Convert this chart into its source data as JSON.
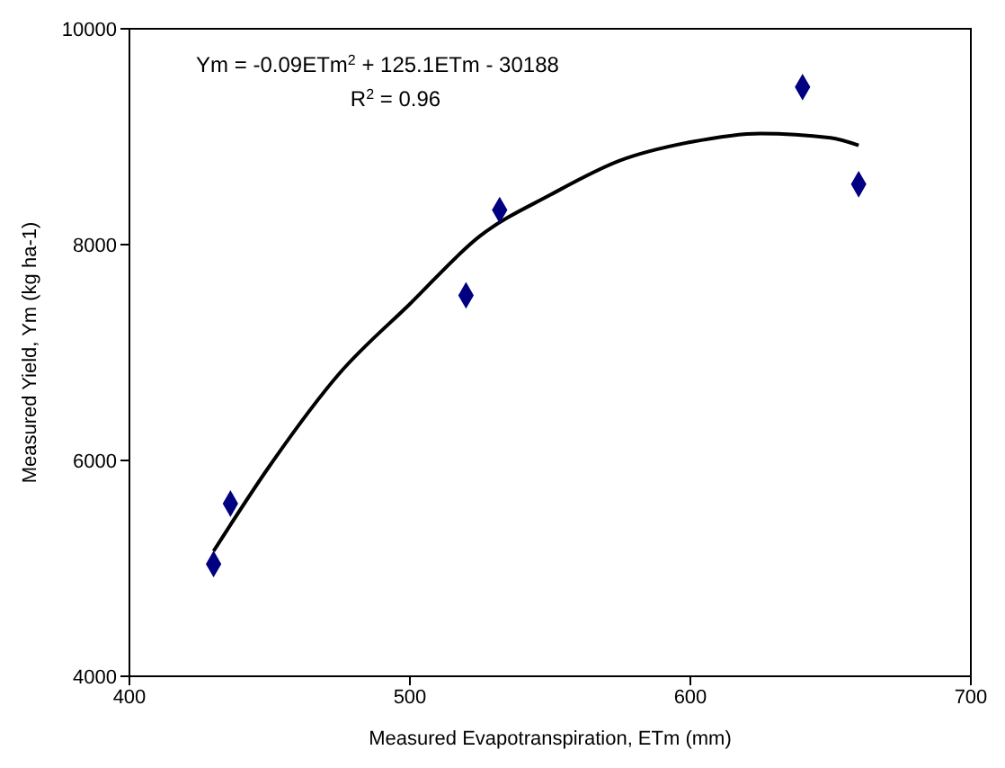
{
  "chart_data": {
    "type": "scatter",
    "xlabel": "Measured Evapotranspiration, ETm (mm)",
    "ylabel": "Measured Yield, Ym (kg ha-1)",
    "annotations": [
      "Ym = -0.09ETm$^{2}$ + 125.1ETm - 30188",
      "R$^{2}$ = 0.96"
    ],
    "x": [
      430,
      436,
      520,
      532,
      640,
      660
    ],
    "series": [
      {
        "color": "#000080",
        "marker": "diamond",
        "values": [
          5040,
          5600,
          7530,
          8320,
          9460,
          8560
        ]
      },
      {
        "type": "line",
        "color": "#000000",
        "marker": "none",
        "line_style": "solid",
        "x": [
          430,
          450,
          475,
          500,
          525,
          550,
          575,
          600,
          625,
          650,
          660
        ],
        "values": [
          5160,
          5950,
          6810,
          7450,
          8080,
          8460,
          8780,
          8950,
          9030,
          8990,
          8920
        ]
      }
    ],
    "xlim": [
      400,
      700
    ],
    "xticks": [
      400,
      500,
      600,
      700
    ],
    "ylim": [
      4000,
      10000
    ],
    "yticks": [
      4000,
      6000,
      8000,
      10000
    ],
    "grid": false
  }
}
